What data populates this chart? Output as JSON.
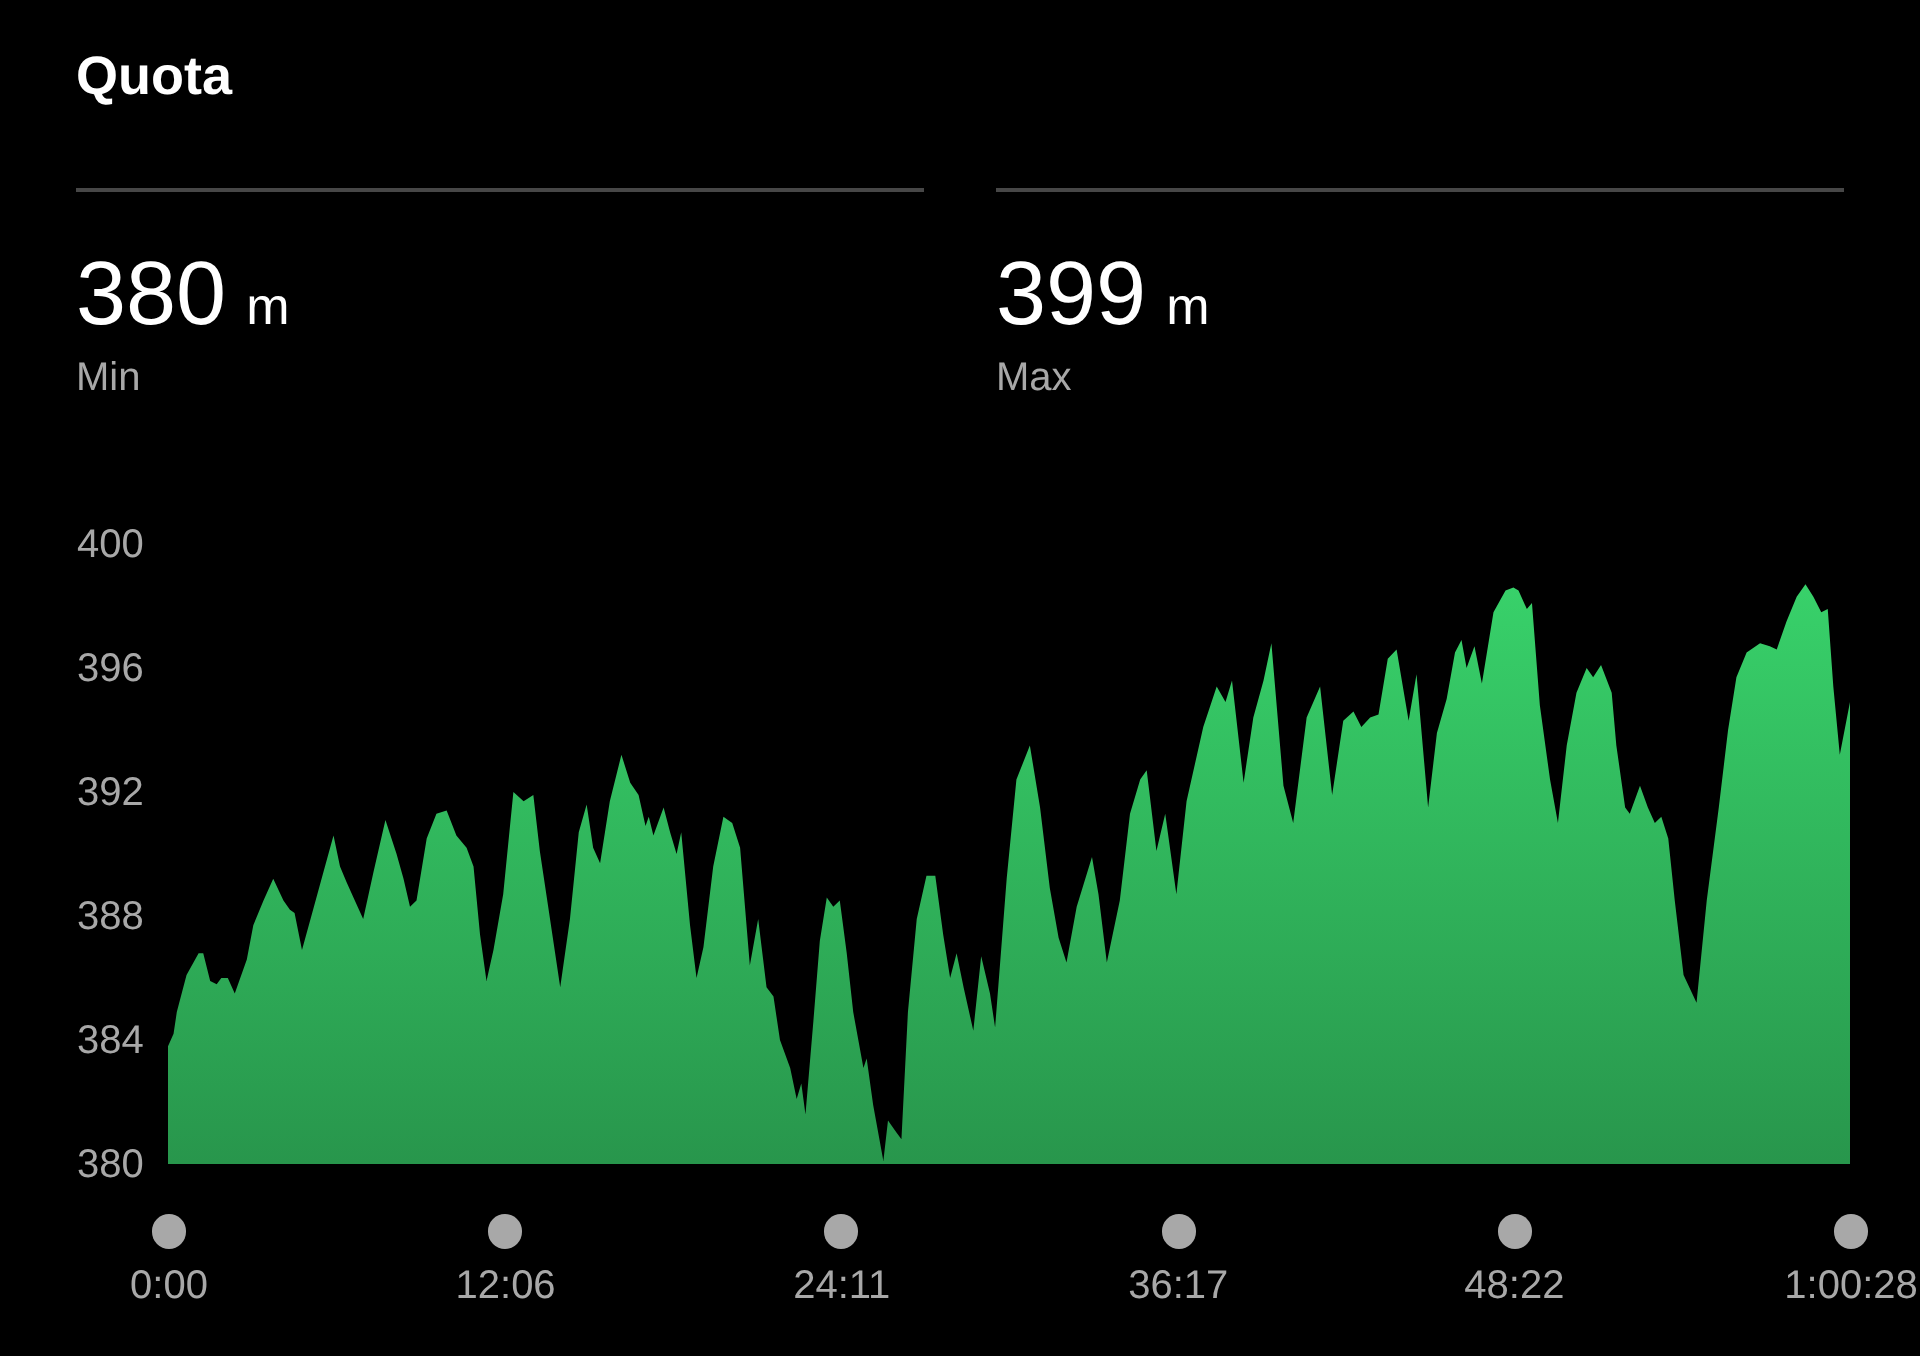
{
  "chart_data": {
    "type": "area",
    "title": "Quota",
    "annotations": [
      "380 m",
      "Min",
      "399 m",
      "Max"
    ],
    "x": [
      0,
      12,
      19,
      40,
      66,
      76,
      91,
      105,
      115,
      129,
      144,
      170,
      184,
      206,
      227,
      249,
      263,
      273,
      289,
      311,
      335,
      357,
      371,
      385,
      400,
      421,
      443,
      469,
      493,
      508,
      522,
      536,
      558,
      579,
      601,
      622,
      644,
      659,
      673,
      687,
      702,
      723,
      745,
      767,
      788,
      802,
      824,
      846,
      867,
      886,
      903,
      917,
      932,
      953,
      978,
      997,
      1015,
      1030,
      1037,
      1047,
      1069,
      1083,
      1097,
      1107,
      1126,
      1140,
      1155,
      1176,
      1198,
      1217,
      1234,
      1255,
      1273,
      1291,
      1306,
      1320,
      1342,
      1356,
      1366,
      1375,
      1392,
      1406,
      1421,
      1435,
      1449,
      1464,
      1478,
      1500,
      1507,
      1521,
      1543,
      1553,
      1572,
      1582,
      1596,
      1615,
      1636,
      1655,
      1672,
      1687,
      1701,
      1716,
      1737,
      1754,
      1773,
      1784,
      1809,
      1830,
      1859,
      1881,
      1902,
      1921,
      1938,
      1960,
      1993,
      2007,
      2025,
      2053,
      2075,
      2097,
      2111,
      2132,
      2151,
      2175,
      2197,
      2233,
      2262,
      2281,
      2295,
      2320,
      2341,
      2363,
      2380,
      2406,
      2427,
      2456,
      2485,
      2511,
      2535,
      2557,
      2574,
      2593,
      2611,
      2631,
      2650,
      2676,
      2693,
      2718,
      2737,
      2758,
      2776,
      2790,
      2801,
      2818,
      2834,
      2859,
      2885,
      2902,
      2913,
      2931,
      2942,
      2959,
      2981,
      2998,
      3017,
      3038,
      3060,
      3074,
      3091,
      3114,
      3124,
      3143,
      3153,
      3175,
      3192,
      3207,
      3221,
      3236,
      3250,
      3269,
      3297,
      3319,
      3345,
      3365,
      3383,
      3405,
      3434,
      3455,
      3470,
      3491,
      3513,
      3532,
      3549,
      3566,
      3580,
      3592,
      3606,
      3628
    ],
    "values": [
      383.8,
      384.2,
      384.9,
      386.1,
      386.8,
      386.8,
      385.9,
      385.8,
      386.0,
      386.0,
      385.5,
      386.6,
      387.7,
      388.5,
      389.2,
      388.5,
      388.2,
      388.1,
      386.9,
      388.1,
      389.4,
      390.6,
      389.6,
      389.1,
      388.6,
      387.9,
      389.4,
      391.1,
      390.0,
      389.2,
      388.3,
      388.5,
      390.5,
      391.3,
      391.4,
      390.6,
      390.2,
      389.6,
      387.4,
      385.9,
      386.9,
      388.7,
      392.0,
      391.7,
      391.9,
      390.1,
      387.9,
      385.7,
      387.9,
      390.7,
      391.6,
      390.2,
      389.7,
      391.7,
      393.2,
      392.3,
      391.9,
      390.9,
      391.2,
      390.6,
      391.5,
      390.7,
      390.0,
      390.7,
      387.7,
      386.0,
      387.0,
      389.6,
      391.2,
      391.0,
      390.2,
      386.4,
      387.9,
      385.7,
      385.4,
      384.0,
      383.1,
      382.1,
      382.6,
      381.6,
      384.6,
      387.2,
      388.6,
      388.3,
      388.5,
      386.8,
      384.9,
      383.1,
      383.4,
      381.9,
      380.1,
      381.4,
      381.0,
      380.8,
      384.9,
      387.9,
      389.3,
      389.3,
      387.4,
      386.0,
      386.8,
      385.7,
      384.3,
      386.7,
      385.5,
      384.4,
      389.2,
      392.4,
      393.5,
      391.5,
      388.9,
      387.3,
      386.5,
      388.3,
      389.9,
      388.7,
      386.5,
      388.5,
      391.3,
      392.4,
      392.7,
      390.1,
      391.3,
      388.7,
      391.7,
      394.1,
      395.4,
      394.9,
      395.6,
      392.3,
      394.4,
      395.6,
      396.8,
      392.2,
      391.0,
      394.4,
      395.4,
      391.9,
      394.3,
      394.6,
      394.1,
      394.4,
      394.5,
      396.3,
      396.6,
      394.3,
      395.8,
      391.5,
      393.9,
      395.0,
      396.5,
      396.9,
      396.0,
      396.7,
      395.5,
      397.8,
      398.5,
      398.6,
      398.5,
      397.9,
      398.1,
      394.8,
      392.4,
      391.0,
      393.5,
      395.2,
      396.0,
      395.7,
      396.1,
      395.2,
      393.5,
      391.5,
      391.3,
      392.2,
      391.5,
      391.0,
      391.2,
      390.5,
      388.5,
      386.1,
      385.2,
      388.5,
      391.5,
      394.0,
      395.7,
      396.5,
      396.8,
      396.7,
      396.6,
      397.5,
      398.3,
      398.7,
      398.3,
      397.8,
      397.9,
      395.4,
      393.2,
      394.9
    ],
    "color": "#2fae58",
    "xlim": [
      0,
      3628
    ],
    "xticks": [
      {
        "value": 0,
        "label": "0:00"
      },
      {
        "value": 726,
        "label": "12:06"
      },
      {
        "value": 1451,
        "label": "24:11"
      },
      {
        "value": 2177,
        "label": "36:17"
      },
      {
        "value": 2902,
        "label": "48:22"
      },
      {
        "value": 3628,
        "label": "1:00:28"
      }
    ],
    "ylim": [
      380,
      400
    ],
    "yticks": [
      380,
      384,
      388,
      392,
      396,
      400
    ]
  }
}
